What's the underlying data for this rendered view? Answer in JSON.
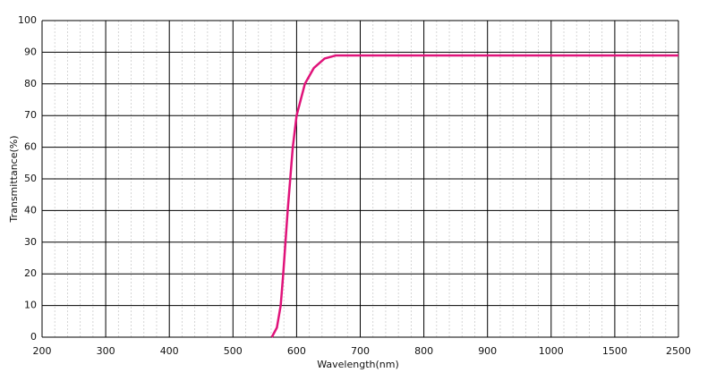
{
  "chart_data": {
    "type": "line",
    "x_label": "Wavelength(nm)",
    "y_label": "Transmittance(%)",
    "series": [
      {
        "name": "Transmittance",
        "color": "#e0137a",
        "x": [
          561,
          569,
          575,
          579,
          586,
          594,
          600,
          613,
          627,
          644,
          662,
          700,
          1000,
          1500,
          2500
        ],
        "values": [
          0,
          3,
          10,
          20,
          40,
          60,
          70,
          80,
          85,
          88,
          89,
          89,
          89,
          89,
          89
        ]
      }
    ],
    "xlim": [
      200,
      2500
    ],
    "xticks": [
      200,
      300,
      400,
      500,
      600,
      700,
      800,
      900,
      1000,
      1500,
      2500
    ],
    "ylim": [
      0,
      100
    ],
    "yticks": [
      0,
      10,
      20,
      30,
      40,
      50,
      60,
      70,
      80,
      90,
      100
    ],
    "grid": true
  }
}
